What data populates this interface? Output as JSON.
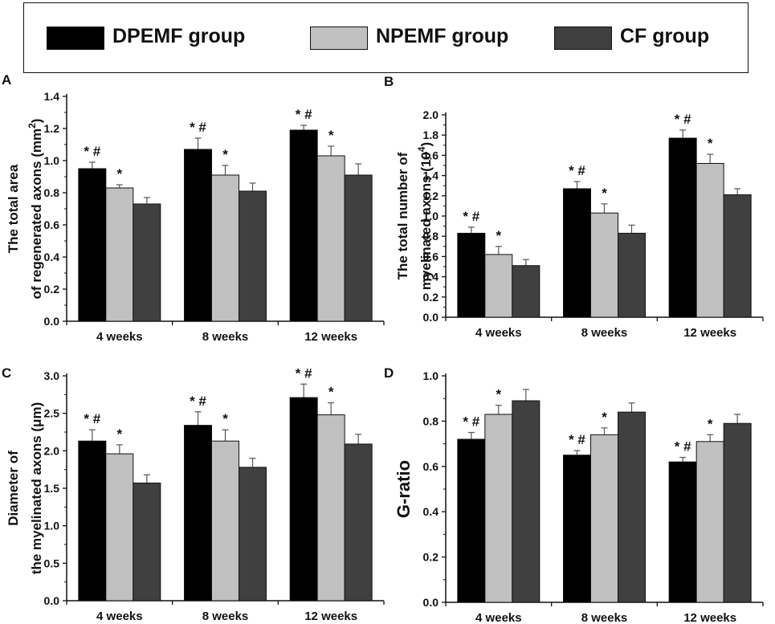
{
  "legend": [
    {
      "name": "DPEMF group",
      "color": "#000000"
    },
    {
      "name": "NPEMF group",
      "color": "#c0c0c0"
    },
    {
      "name": "CF group",
      "color": "#404040"
    }
  ],
  "chart_data": [
    {
      "type": "bar",
      "panel": "A",
      "categories": [
        "4 weeks",
        "8 weeks",
        "12 weeks"
      ],
      "ylabel_line1": "The total area",
      "ylabel_line2": "of regenerated axons (mm",
      "ylabel_sup": "2",
      "ylabel_end": ")",
      "ylim": [
        0,
        1.4
      ],
      "yticks": [
        "0.0",
        "0.2",
        "0.4",
        "0.6",
        "0.8",
        "1.0",
        "1.2",
        "1.4"
      ],
      "series": [
        {
          "name": "DPEMF group",
          "values": [
            0.95,
            1.07,
            1.19
          ],
          "errors": [
            0.04,
            0.07,
            0.03
          ],
          "labels": [
            "* #",
            "* #",
            "* #"
          ]
        },
        {
          "name": "NPEMF group",
          "values": [
            0.83,
            0.91,
            1.03
          ],
          "errors": [
            0.02,
            0.06,
            0.06
          ],
          "labels": [
            "*",
            "*",
            "*"
          ]
        },
        {
          "name": "CF group",
          "values": [
            0.73,
            0.81,
            0.91
          ],
          "errors": [
            0.04,
            0.05,
            0.07
          ],
          "labels": [
            "",
            "",
            ""
          ]
        }
      ]
    },
    {
      "type": "bar",
      "panel": "B",
      "categories": [
        "4 weeks",
        "8 weeks",
        "12 weeks"
      ],
      "ylabel_line1": "The total number of",
      "ylabel_line2": "myelinated axons (10",
      "ylabel_sup": "4",
      "ylabel_end": ")",
      "ylim": [
        0,
        2.0
      ],
      "yticks": [
        "0.0",
        "0.2",
        "0.4",
        "0.6",
        "0.8",
        "1.0",
        "1.2",
        "1.4",
        "1.6",
        "1.8",
        "2.0"
      ],
      "series": [
        {
          "name": "DPEMF group",
          "values": [
            0.83,
            1.27,
            1.77
          ],
          "errors": [
            0.06,
            0.07,
            0.08
          ],
          "labels": [
            "* #",
            "* #",
            "* #"
          ]
        },
        {
          "name": "NPEMF group",
          "values": [
            0.62,
            1.03,
            1.52
          ],
          "errors": [
            0.08,
            0.09,
            0.09
          ],
          "labels": [
            "*",
            "*",
            "*"
          ]
        },
        {
          "name": "CF group",
          "values": [
            0.51,
            0.83,
            1.21
          ],
          "errors": [
            0.06,
            0.08,
            0.06
          ],
          "labels": [
            "",
            "",
            ""
          ]
        }
      ]
    },
    {
      "type": "bar",
      "panel": "C",
      "categories": [
        "4 weeks",
        "8 weeks",
        "12 weeks"
      ],
      "ylabel_line1": "Diameter of",
      "ylabel_line2": "the myelinated axons (μm)",
      "ylabel_sup": "",
      "ylabel_end": "",
      "ylim": [
        0,
        3.0
      ],
      "yticks": [
        "0.0",
        "0.5",
        "1.0",
        "1.5",
        "2.0",
        "2.5",
        "3.0"
      ],
      "series": [
        {
          "name": "DPEMF group",
          "values": [
            2.13,
            2.34,
            2.71
          ],
          "errors": [
            0.15,
            0.18,
            0.18
          ],
          "labels": [
            "* #",
            "* #",
            "* #"
          ]
        },
        {
          "name": "NPEMF group",
          "values": [
            1.96,
            2.13,
            2.48
          ],
          "errors": [
            0.12,
            0.15,
            0.16
          ],
          "labels": [
            "*",
            "*",
            "*"
          ]
        },
        {
          "name": "CF group",
          "values": [
            1.57,
            1.78,
            2.09
          ],
          "errors": [
            0.11,
            0.12,
            0.13
          ],
          "labels": [
            "",
            "",
            ""
          ]
        }
      ]
    },
    {
      "type": "bar",
      "panel": "D",
      "categories": [
        "4 weeks",
        "8 weeks",
        "12 weeks"
      ],
      "ylabel_line1": "",
      "ylabel_line2": "G-ratio",
      "ylabel_sup": "",
      "ylabel_end": "",
      "ylim": [
        0,
        1.0
      ],
      "yticks": [
        "0.0",
        "0.2",
        "0.4",
        "0.6",
        "0.8",
        "1.0"
      ],
      "series": [
        {
          "name": "DPEMF group",
          "values": [
            0.72,
            0.65,
            0.62
          ],
          "errors": [
            0.03,
            0.02,
            0.02
          ],
          "labels": [
            "* #",
            "* #",
            "* #"
          ]
        },
        {
          "name": "NPEMF group",
          "values": [
            0.83,
            0.74,
            0.71
          ],
          "errors": [
            0.04,
            0.03,
            0.03
          ],
          "labels": [
            "*",
            "*",
            "*"
          ]
        },
        {
          "name": "CF group",
          "values": [
            0.89,
            0.84,
            0.79
          ],
          "errors": [
            0.05,
            0.04,
            0.04
          ],
          "labels": [
            "",
            "",
            ""
          ]
        }
      ]
    }
  ]
}
